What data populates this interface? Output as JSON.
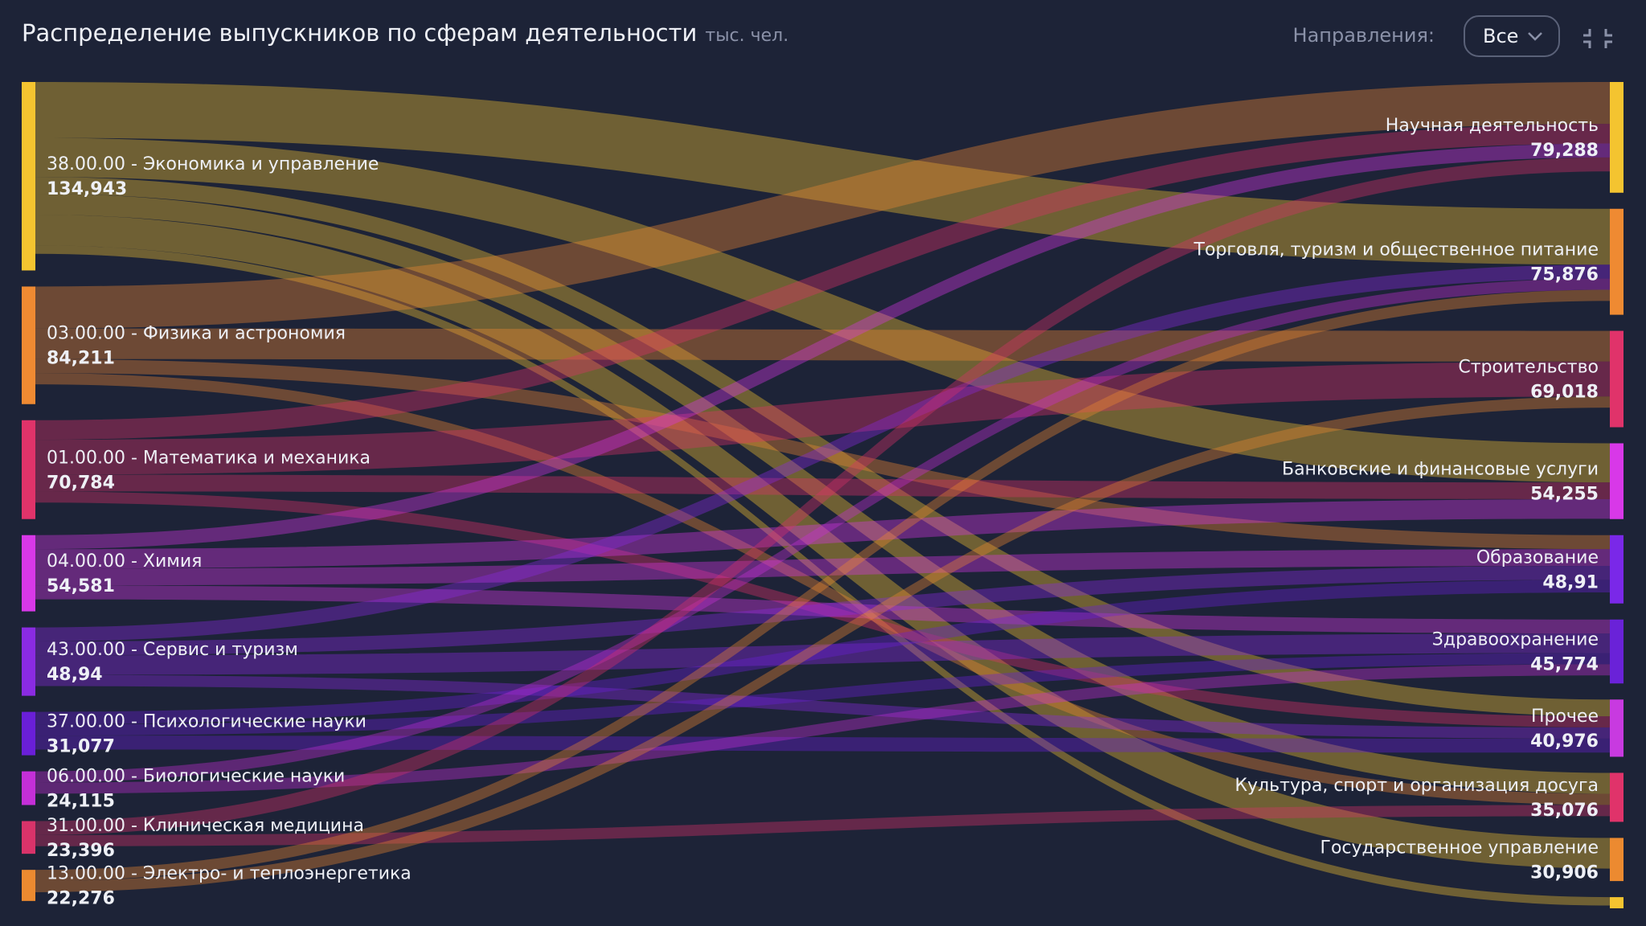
{
  "chart_data": {
    "type": "sankey",
    "title": "Распределение выпускников по сферам деятельности",
    "unit": "тыс. чел.",
    "left": {
      "names": [
        "38.00.00 - Экономика и управление",
        "03.00.00 - Физика и астрономия",
        "01.00.00 - Математика и механика",
        "04.00.00 - Химия",
        "43.00.00 - Сервис и туризм",
        "37.00.00 - Психологические науки",
        "06.00.00 - Биологические науки",
        "31.00.00 - Клиническая медицина",
        "13.00.00 - Электро- и теплоэнергетика"
      ],
      "values": [
        134.943,
        84.211,
        70.784,
        54.581,
        48.94,
        31.077,
        24.115,
        23.396,
        22.276
      ],
      "value_labels": [
        "134,943",
        "84,211",
        "70,784",
        "54,581",
        "48,94",
        "31,077",
        "24,115",
        "23,396",
        "22,276"
      ],
      "colors": [
        "#f4c430",
        "#ef8a32",
        "#e0336a",
        "#d838e8",
        "#8a2be2",
        "#6a1fd8",
        "#c42fd8",
        "#d9336a",
        "#ec8a30"
      ]
    },
    "right": {
      "names": [
        "Научная деятельность",
        "Торговля, туризм и общественное питание",
        "Строительство",
        "Банковские и финансовые услуги",
        "Образование",
        "Здравоохранение",
        "Прочее",
        "Культура, спорт и организация досуга",
        "Государственное управление",
        null
      ],
      "values": [
        79.288,
        75.876,
        69.018,
        54.255,
        48.91,
        45.774,
        40.976,
        35.076,
        30.906,
        8
      ],
      "value_labels": [
        "79,288",
        "75,876",
        "69,018",
        "54,255",
        "48,91",
        "45,774",
        "40,976",
        "35,076",
        "30,906",
        null
      ],
      "colors": [
        "#f4c430",
        "#ef8a32",
        "#e0336a",
        "#d838e8",
        "#7a28e8",
        "#6a22d8",
        "#c83ae0",
        "#e0336a",
        "#ec8a30",
        "#f4c430"
      ]
    },
    "links": [
      {
        "source": 0,
        "target": 1,
        "value": 40
      },
      {
        "source": 0,
        "target": 3,
        "value": 28
      },
      {
        "source": 0,
        "target": 6,
        "value": 12
      },
      {
        "source": 0,
        "target": 7,
        "value": 15
      },
      {
        "source": 0,
        "target": 8,
        "value": 22
      },
      {
        "source": 0,
        "target": 9,
        "value": 6
      },
      {
        "source": 1,
        "target": 0,
        "value": 30
      },
      {
        "source": 1,
        "target": 2,
        "value": 22
      },
      {
        "source": 1,
        "target": 4,
        "value": 10
      },
      {
        "source": 1,
        "target": 7,
        "value": 8
      },
      {
        "source": 2,
        "target": 0,
        "value": 14
      },
      {
        "source": 2,
        "target": 2,
        "value": 25
      },
      {
        "source": 2,
        "target": 3,
        "value": 12
      },
      {
        "source": 2,
        "target": 6,
        "value": 8
      },
      {
        "source": 3,
        "target": 0,
        "value": 10
      },
      {
        "source": 3,
        "target": 3,
        "value": 14
      },
      {
        "source": 3,
        "target": 4,
        "value": 12
      },
      {
        "source": 3,
        "target": 5,
        "value": 10
      },
      {
        "source": 4,
        "target": 1,
        "value": 10
      },
      {
        "source": 4,
        "target": 4,
        "value": 10
      },
      {
        "source": 4,
        "target": 5,
        "value": 14
      },
      {
        "source": 4,
        "target": 6,
        "value": 8
      },
      {
        "source": 5,
        "target": 4,
        "value": 9
      },
      {
        "source": 5,
        "target": 5,
        "value": 8
      },
      {
        "source": 5,
        "target": 6,
        "value": 10
      },
      {
        "source": 6,
        "target": 1,
        "value": 8
      },
      {
        "source": 6,
        "target": 5,
        "value": 8
      },
      {
        "source": 7,
        "target": 0,
        "value": 10
      },
      {
        "source": 7,
        "target": 7,
        "value": 8
      },
      {
        "source": 8,
        "target": 1,
        "value": 8
      },
      {
        "source": 8,
        "target": 2,
        "value": 8
      }
    ]
  },
  "controls": {
    "filter_label": "Направления:",
    "filter_value": "Все"
  }
}
